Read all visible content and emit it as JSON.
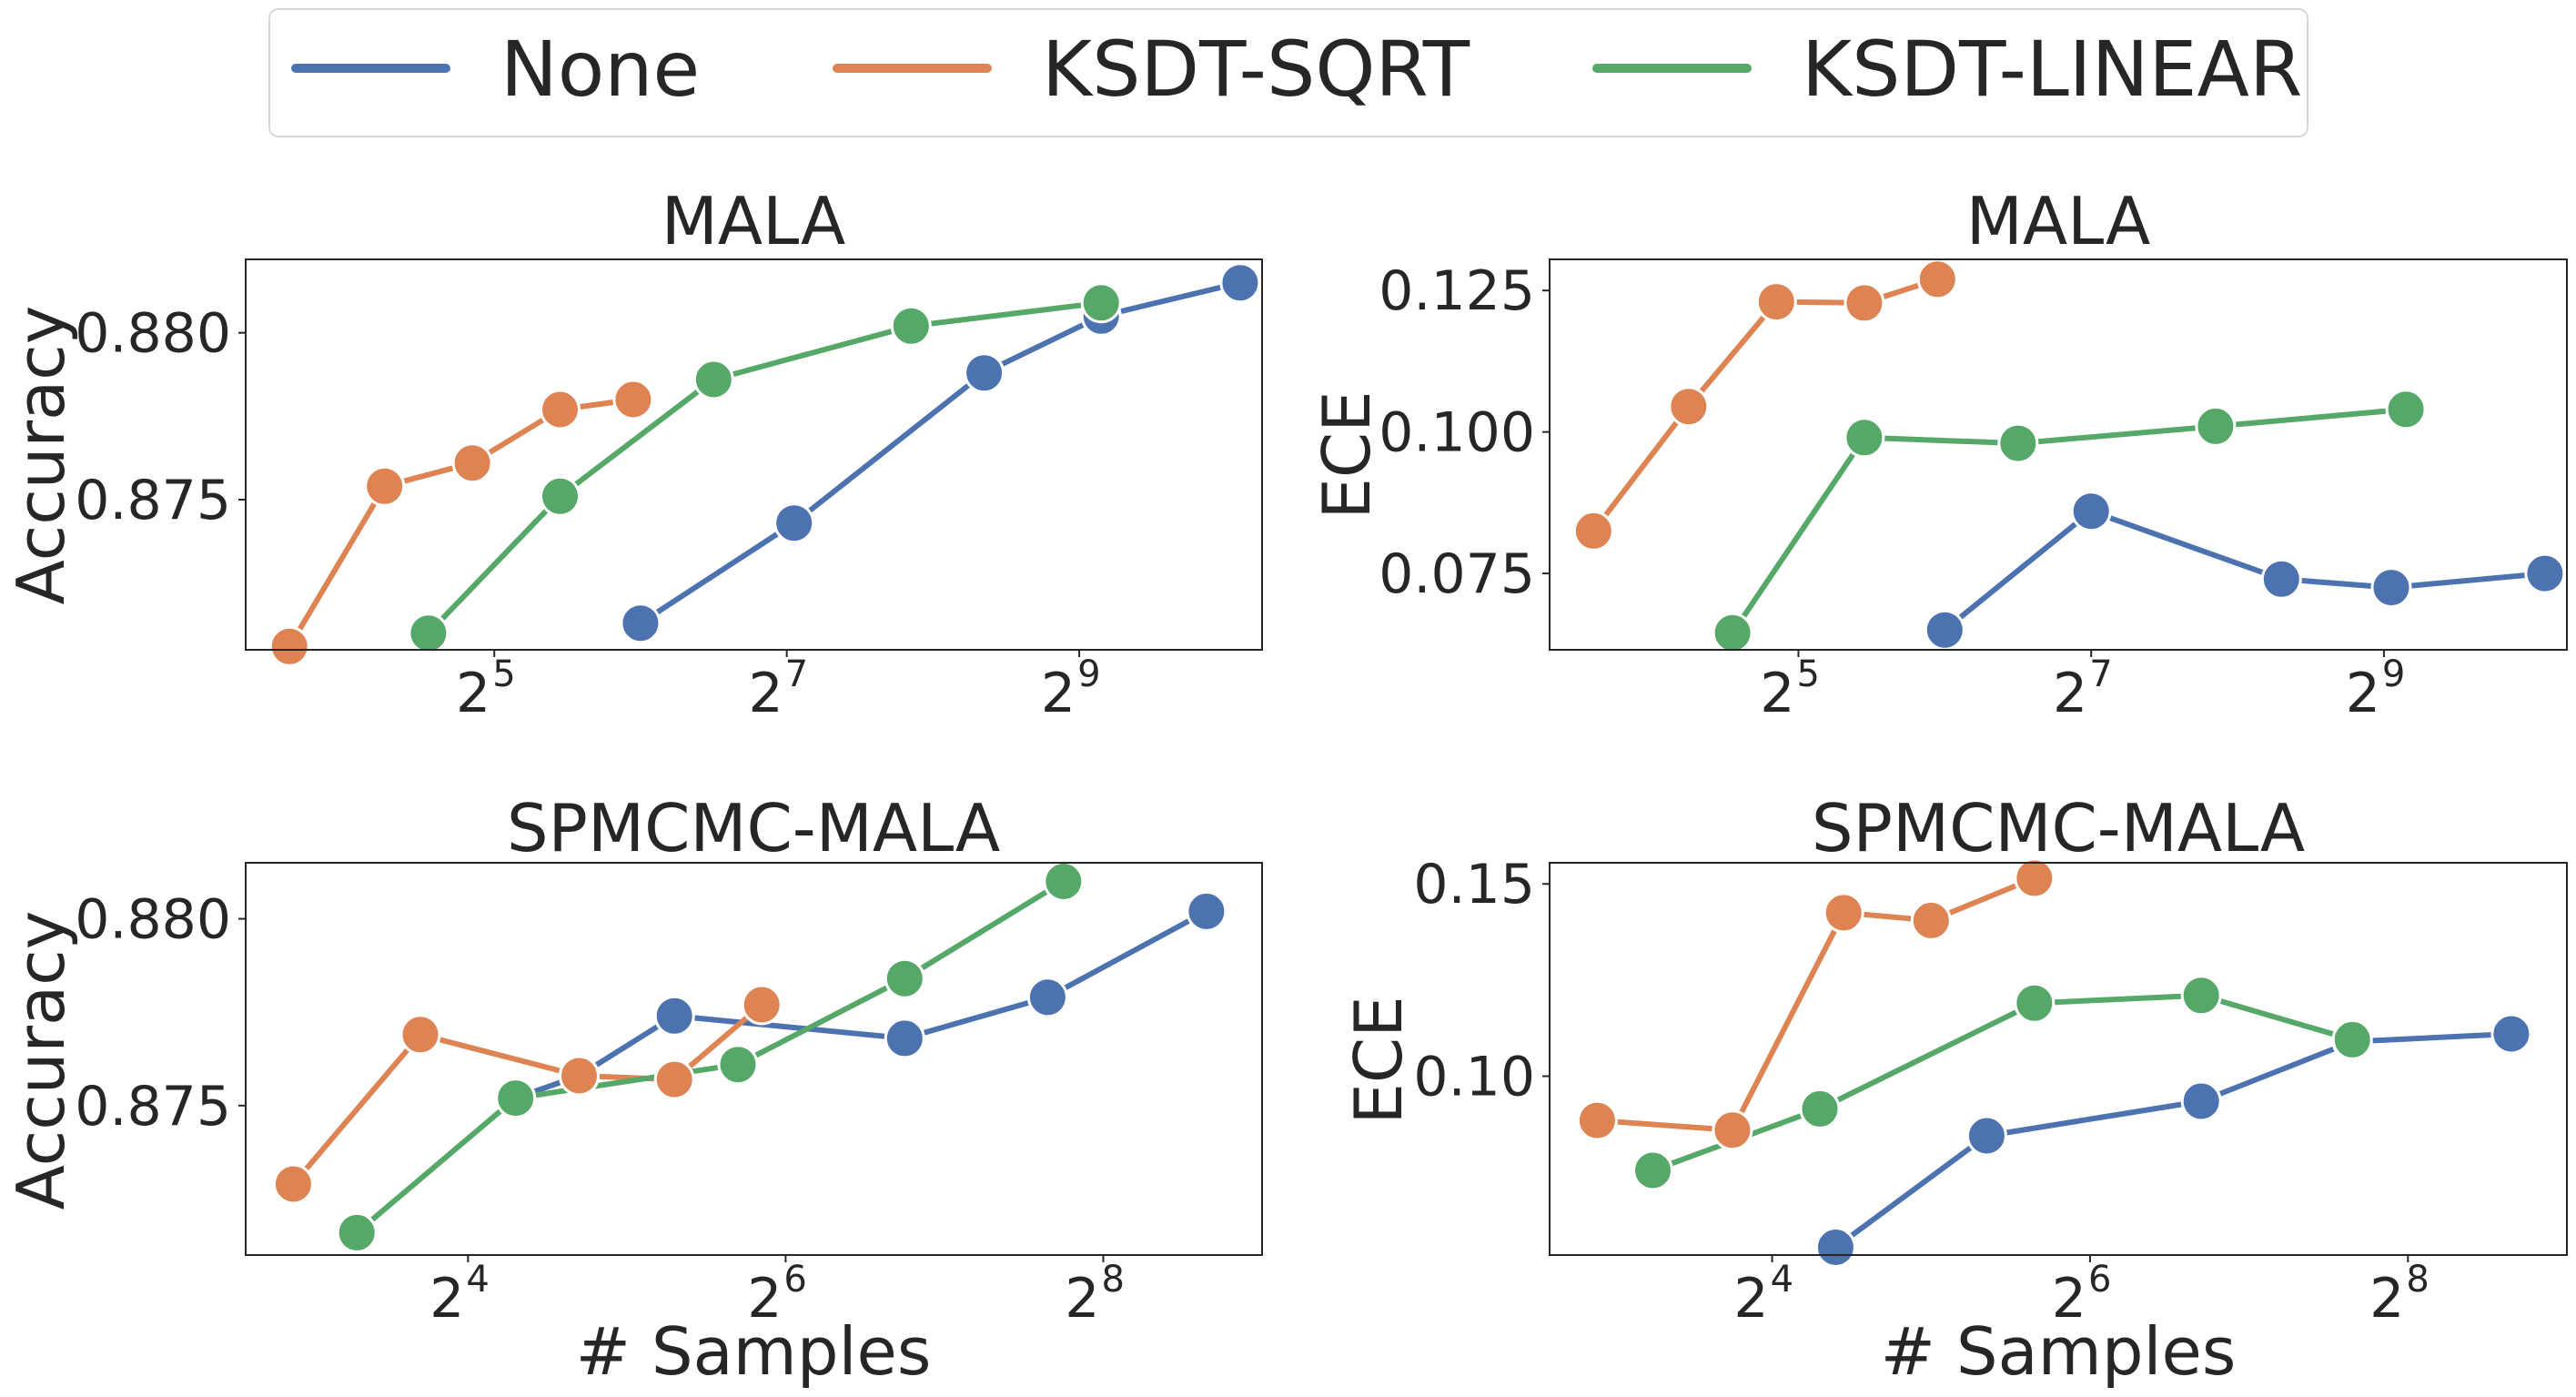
{
  "colors": {
    "None": "#4c72b0",
    "KSDT-SQRT": "#dd8452",
    "KSDT-LINEAR": "#55a868"
  },
  "legend": {
    "entries": [
      "None",
      "KSDT-SQRT",
      "KSDT-LINEAR"
    ]
  },
  "chart_data": [
    {
      "type": "line",
      "title": "MALA",
      "xlabel": "",
      "ylabel": "Accuracy",
      "xscale": "log2",
      "xlim_log2": [
        3.3,
        10.25
      ],
      "ylim": [
        0.8705,
        0.8822
      ],
      "xticks": [
        {
          "exp": "5",
          "log2": 5
        },
        {
          "exp": "7",
          "log2": 7
        },
        {
          "exp": "9",
          "log2": 9
        }
      ],
      "yticks": [
        {
          "label": "0.875",
          "value": 0.875
        },
        {
          "label": "0.880",
          "value": 0.88
        }
      ],
      "series": [
        {
          "name": "None",
          "x_log2": [
            6.0,
            7.05,
            8.35,
            9.15,
            10.1
          ],
          "y": [
            0.8713,
            0.8743,
            0.8788,
            0.8805,
            0.8815
          ]
        },
        {
          "name": "KSDT-SQRT",
          "x_log2": [
            3.6,
            4.25,
            4.85,
            5.45,
            5.95
          ],
          "y": [
            0.8706,
            0.8754,
            0.8761,
            0.8777,
            0.878
          ]
        },
        {
          "name": "KSDT-LINEAR",
          "x_log2": [
            4.55,
            5.45,
            6.5,
            7.85,
            9.15
          ],
          "y": [
            0.871,
            0.8751,
            0.8786,
            0.8802,
            0.8809
          ]
        }
      ]
    },
    {
      "type": "line",
      "title": "MALA",
      "xlabel": "",
      "ylabel": "ECE",
      "xscale": "log2",
      "xlim_log2": [
        3.3,
        10.25
      ],
      "ylim": [
        0.0615,
        0.1305
      ],
      "xticks": [
        {
          "exp": "5",
          "log2": 5
        },
        {
          "exp": "7",
          "log2": 7
        },
        {
          "exp": "9",
          "log2": 9
        }
      ],
      "yticks": [
        {
          "label": "0.075",
          "value": 0.075
        },
        {
          "label": "0.100",
          "value": 0.1
        },
        {
          "label": "0.125",
          "value": 0.125
        }
      ],
      "series": [
        {
          "name": "None",
          "x_log2": [
            6.0,
            7.0,
            8.3,
            9.05,
            10.1
          ],
          "y": [
            0.065,
            0.086,
            0.074,
            0.0725,
            0.075
          ]
        },
        {
          "name": "KSDT-SQRT",
          "x_log2": [
            3.6,
            4.25,
            4.85,
            5.45,
            5.95
          ],
          "y": [
            0.0825,
            0.1045,
            0.123,
            0.1228,
            0.127
          ]
        },
        {
          "name": "KSDT-LINEAR",
          "x_log2": [
            4.55,
            5.45,
            6.5,
            7.85,
            9.15
          ],
          "y": [
            0.0645,
            0.099,
            0.098,
            0.101,
            0.104
          ]
        }
      ]
    },
    {
      "type": "line",
      "title": "SPMCMC-MALA",
      "xlabel": "# Samples",
      "ylabel": "Accuracy",
      "xscale": "log2",
      "xlim_log2": [
        2.6,
        9.0
      ],
      "ylim": [
        0.871,
        0.8815
      ],
      "xticks": [
        {
          "exp": "4",
          "log2": 4
        },
        {
          "exp": "6",
          "log2": 6
        },
        {
          "exp": "8",
          "log2": 8
        }
      ],
      "yticks": [
        {
          "label": "0.875",
          "value": 0.875
        },
        {
          "label": "0.880",
          "value": 0.88
        }
      ],
      "series": [
        {
          "name": "None",
          "x_log2": [
            4.3,
            4.7,
            5.3,
            6.75,
            7.65,
            8.65
          ],
          "y": [
            0.8752,
            0.8758,
            0.8774,
            0.8768,
            0.8779,
            0.8802
          ]
        },
        {
          "name": "KSDT-SQRT",
          "x_log2": [
            2.9,
            3.7,
            4.7,
            5.3,
            5.85
          ],
          "y": [
            0.8729,
            0.8769,
            0.8758,
            0.8757,
            0.8777
          ]
        },
        {
          "name": "KSDT-LINEAR",
          "x_log2": [
            3.3,
            4.3,
            5.7,
            6.75,
            7.75
          ],
          "y": [
            0.8716,
            0.8752,
            0.8761,
            0.8784,
            0.881
          ]
        }
      ]
    },
    {
      "type": "line",
      "title": "SPMCMC-MALA",
      "xlabel": "# Samples",
      "ylabel": "ECE",
      "xscale": "log2",
      "xlim_log2": [
        2.6,
        9.0
      ],
      "ylim": [
        0.0535,
        0.1555
      ],
      "xticks": [
        {
          "exp": "4",
          "log2": 4
        },
        {
          "exp": "6",
          "log2": 6
        },
        {
          "exp": "8",
          "log2": 8
        }
      ],
      "yticks": [
        {
          "label": "0.10",
          "value": 0.1
        },
        {
          "label": "0.15",
          "value": 0.15
        }
      ],
      "series": [
        {
          "name": "None",
          "x_log2": [
            4.4,
            5.35,
            6.7,
            7.65,
            8.65
          ],
          "y": [
            0.0555,
            0.0845,
            0.0935,
            0.109,
            0.111
          ]
        },
        {
          "name": "KSDT-SQRT",
          "x_log2": [
            2.9,
            3.75,
            4.45,
            5.0,
            5.65
          ],
          "y": [
            0.0885,
            0.086,
            0.1425,
            0.1405,
            0.1515
          ]
        },
        {
          "name": "KSDT-LINEAR",
          "x_log2": [
            3.25,
            4.3,
            5.65,
            6.7,
            7.65
          ],
          "y": [
            0.0755,
            0.0915,
            0.119,
            0.121,
            0.1095
          ]
        }
      ]
    }
  ]
}
